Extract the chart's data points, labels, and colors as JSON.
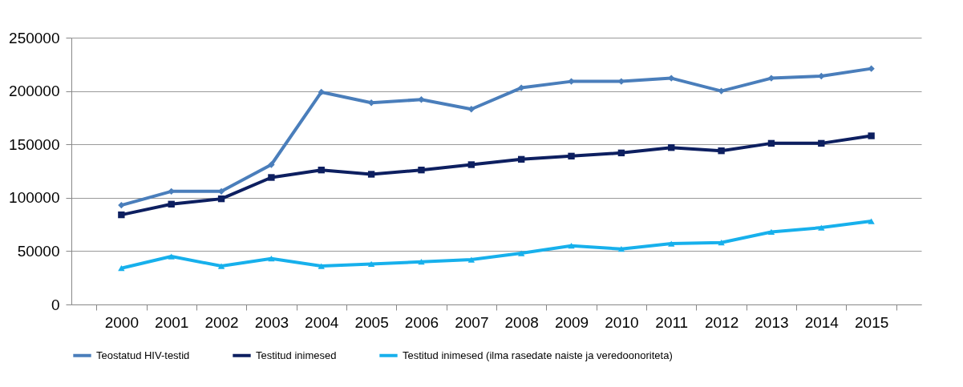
{
  "chart_data": {
    "type": "line",
    "categories": [
      "2000",
      "2001",
      "2002",
      "2003",
      "2004",
      "2005",
      "2006",
      "2007",
      "2008",
      "2009",
      "2010",
      "2011",
      "2012",
      "2013",
      "2014",
      "2015"
    ],
    "series": [
      {
        "name": "Teostatud HIV-testid",
        "color": "#4a7ebb",
        "marker": "diamond",
        "values": [
          93000,
          106000,
          106000,
          131000,
          199000,
          189000,
          192000,
          183000,
          203000,
          209000,
          209000,
          212000,
          200000,
          212000,
          214000,
          221000
        ]
      },
      {
        "name": "Testitud inimesed",
        "color": "#0d1f60",
        "marker": "square",
        "values": [
          84000,
          94000,
          99000,
          119000,
          126000,
          122000,
          126000,
          131000,
          136000,
          139000,
          142000,
          147000,
          144000,
          151000,
          151000,
          158000
        ]
      },
      {
        "name": "Testitud inimesed (ilma rasedate naiste ja veredoonoriteta)",
        "color": "#17b0ec",
        "marker": "triangle",
        "values": [
          34000,
          45000,
          36000,
          43000,
          36000,
          38000,
          40000,
          42000,
          48000,
          55000,
          52000,
          57000,
          58000,
          68000,
          72000,
          78000
        ]
      }
    ],
    "ylim": [
      0,
      250000
    ],
    "yticks": [
      0,
      50000,
      100000,
      150000,
      200000,
      250000
    ],
    "grid": "y",
    "legend": "bottom",
    "line_style": "solid"
  }
}
